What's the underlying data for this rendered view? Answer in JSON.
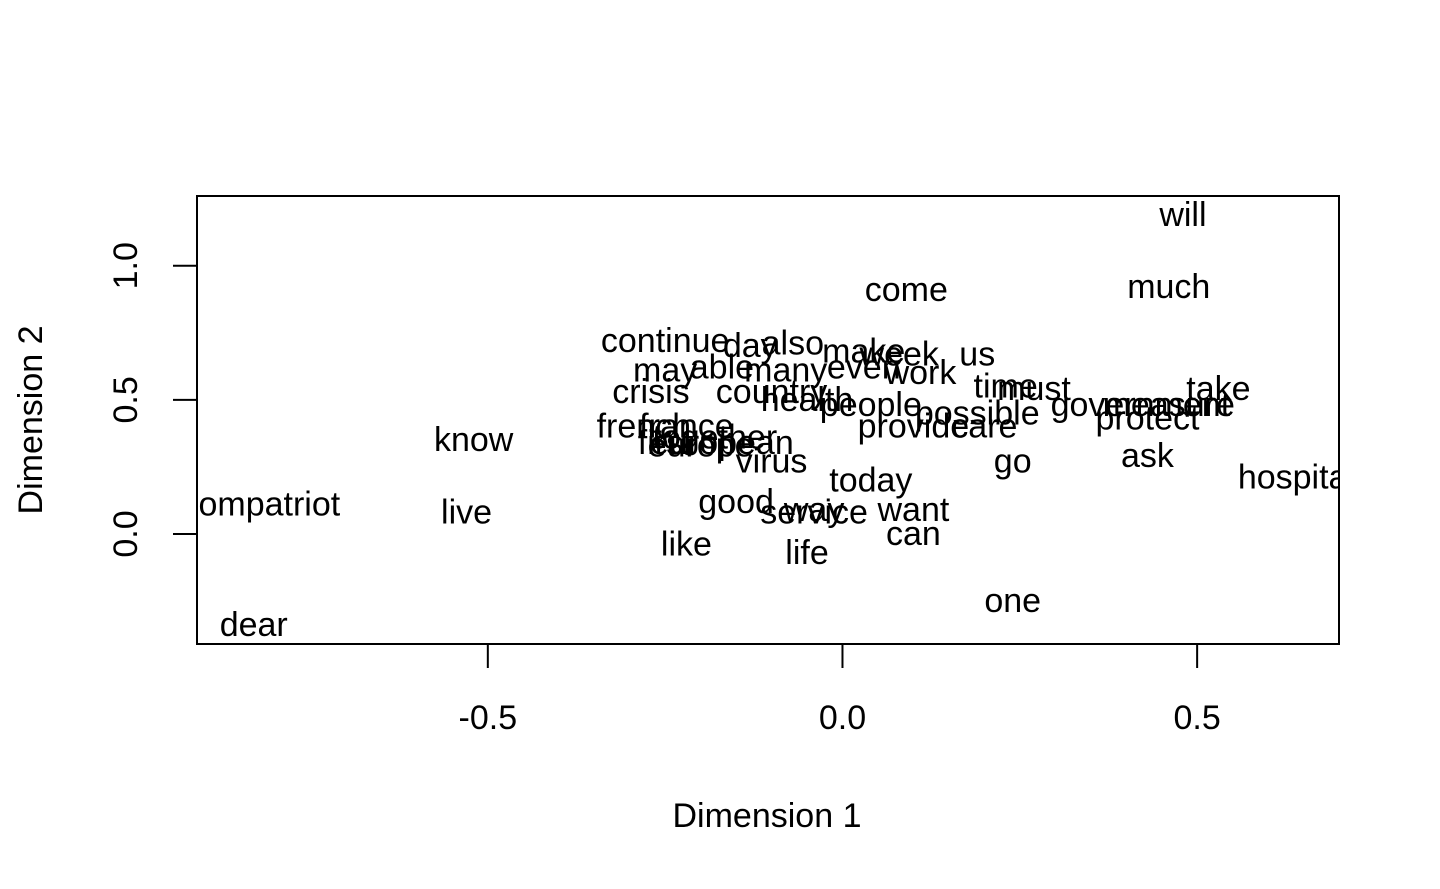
{
  "chart_data": {
    "type": "scatter",
    "title": "",
    "xlabel": "Dimension 1",
    "ylabel": "Dimension 2",
    "xlim": [
      -0.91,
      0.7
    ],
    "ylim": [
      -0.41,
      1.26
    ],
    "x_ticks": [
      -0.5,
      0.0,
      0.5
    ],
    "y_ticks": [
      0.0,
      0.5,
      1.0
    ],
    "x_tick_labels": [
      "-0.5",
      "0.0",
      "0.5"
    ],
    "y_tick_labels": [
      "0.0",
      "0.5",
      "1.0"
    ],
    "grid": false,
    "points": [
      {
        "label": "will",
        "x": 0.48,
        "y": 1.19
      },
      {
        "label": "much",
        "x": 0.46,
        "y": 0.92
      },
      {
        "label": "come",
        "x": 0.09,
        "y": 0.91
      },
      {
        "label": "continue",
        "x": -0.25,
        "y": 0.72
      },
      {
        "label": "day",
        "x": -0.13,
        "y": 0.7
      },
      {
        "label": "also",
        "x": -0.07,
        "y": 0.71
      },
      {
        "label": "make",
        "x": 0.03,
        "y": 0.68
      },
      {
        "label": "week",
        "x": 0.08,
        "y": 0.67
      },
      {
        "label": "us",
        "x": 0.19,
        "y": 0.67
      },
      {
        "label": "may",
        "x": -0.25,
        "y": 0.61
      },
      {
        "label": "able",
        "x": -0.17,
        "y": 0.62
      },
      {
        "label": "many",
        "x": -0.08,
        "y": 0.61
      },
      {
        "label": "even",
        "x": 0.03,
        "y": 0.62
      },
      {
        "label": "work",
        "x": 0.11,
        "y": 0.6
      },
      {
        "label": "crisis",
        "x": -0.27,
        "y": 0.53
      },
      {
        "label": "country",
        "x": -0.1,
        "y": 0.53
      },
      {
        "label": "health",
        "x": -0.05,
        "y": 0.5
      },
      {
        "label": "people",
        "x": 0.04,
        "y": 0.48
      },
      {
        "label": "time",
        "x": 0.23,
        "y": 0.55
      },
      {
        "label": "must",
        "x": 0.27,
        "y": 0.54
      },
      {
        "label": "government",
        "x": 0.42,
        "y": 0.48
      },
      {
        "label": "measure",
        "x": 0.46,
        "y": 0.48
      },
      {
        "label": "take",
        "x": 0.53,
        "y": 0.54
      },
      {
        "label": "possible",
        "x": 0.19,
        "y": 0.45
      },
      {
        "label": "protect",
        "x": 0.43,
        "y": 0.43
      },
      {
        "label": "provide",
        "x": 0.1,
        "y": 0.4
      },
      {
        "label": "care",
        "x": 0.2,
        "y": 0.4
      },
      {
        "label": "french",
        "x": -0.28,
        "y": 0.4
      },
      {
        "label": "france",
        "x": -0.22,
        "y": 0.4
      },
      {
        "label": "together",
        "x": -0.18,
        "y": 0.36
      },
      {
        "label": "european",
        "x": -0.17,
        "y": 0.34
      },
      {
        "label": "first",
        "x": -0.25,
        "y": 0.34
      },
      {
        "label": "europe",
        "x": -0.2,
        "y": 0.33
      },
      {
        "label": "know",
        "x": -0.52,
        "y": 0.35
      },
      {
        "label": "virus",
        "x": -0.1,
        "y": 0.27
      },
      {
        "label": "go",
        "x": 0.24,
        "y": 0.27
      },
      {
        "label": "ask",
        "x": 0.43,
        "y": 0.29
      },
      {
        "label": "today",
        "x": 0.04,
        "y": 0.2
      },
      {
        "label": "hospital",
        "x": 0.64,
        "y": 0.21
      },
      {
        "label": "compatriot",
        "x": -0.82,
        "y": 0.11
      },
      {
        "label": "live",
        "x": -0.53,
        "y": 0.08
      },
      {
        "label": "good",
        "x": -0.15,
        "y": 0.12
      },
      {
        "label": "way",
        "x": -0.04,
        "y": 0.09
      },
      {
        "label": "service",
        "x": -0.04,
        "y": 0.08
      },
      {
        "label": "want",
        "x": 0.1,
        "y": 0.09
      },
      {
        "label": "can",
        "x": 0.1,
        "y": 0.0
      },
      {
        "label": "like",
        "x": -0.22,
        "y": -0.04
      },
      {
        "label": "life",
        "x": -0.05,
        "y": -0.07
      },
      {
        "label": "one",
        "x": 0.24,
        "y": -0.25
      },
      {
        "label": "dear",
        "x": -0.83,
        "y": -0.34
      }
    ]
  }
}
